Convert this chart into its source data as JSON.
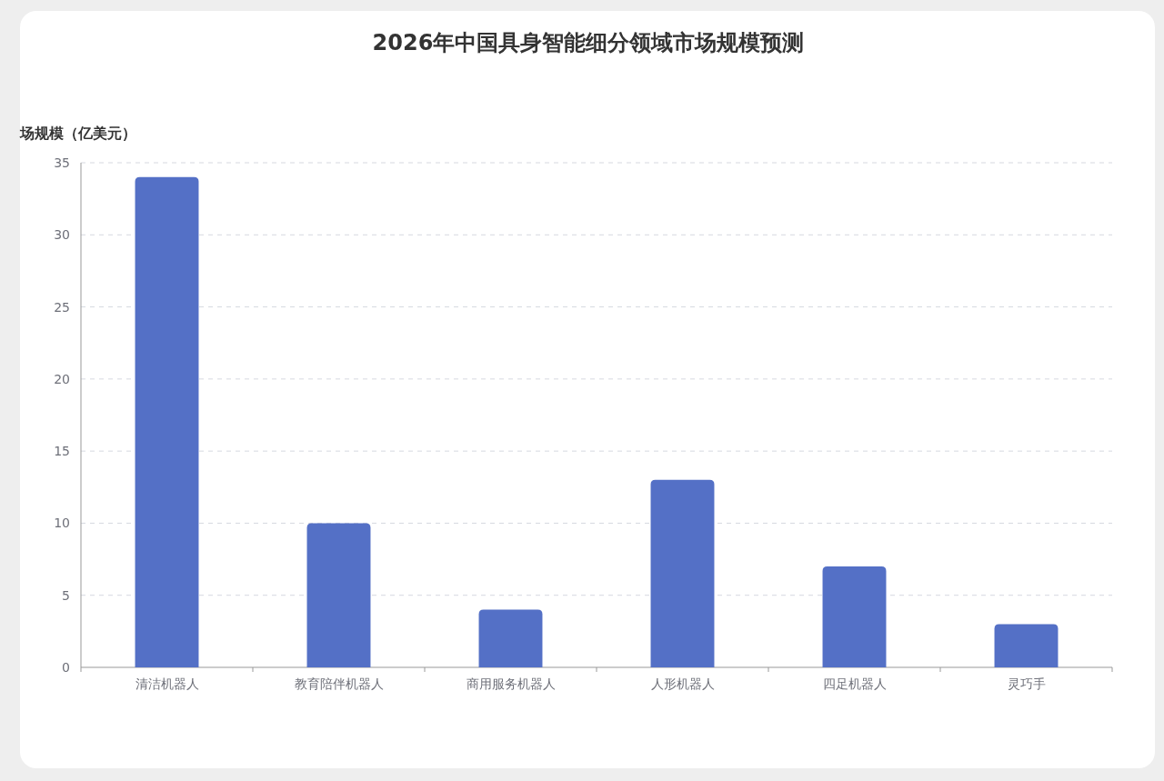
{
  "chart_data": {
    "type": "bar",
    "title": "2026年中国具身智能细分领域市场规模预测",
    "ylabel": "场规模（亿美元）",
    "categories": [
      "清洁机器人",
      "教育陪伴机器人",
      "商用服务机器人",
      "人形机器人",
      "四足机器人",
      "灵巧手"
    ],
    "values": [
      34,
      10,
      4,
      13,
      7,
      3
    ],
    "color": "#5470c6",
    "ylim": [
      0,
      35
    ],
    "yticks": [
      0,
      5,
      10,
      15,
      20,
      25,
      30,
      35
    ],
    "grid": "y"
  }
}
